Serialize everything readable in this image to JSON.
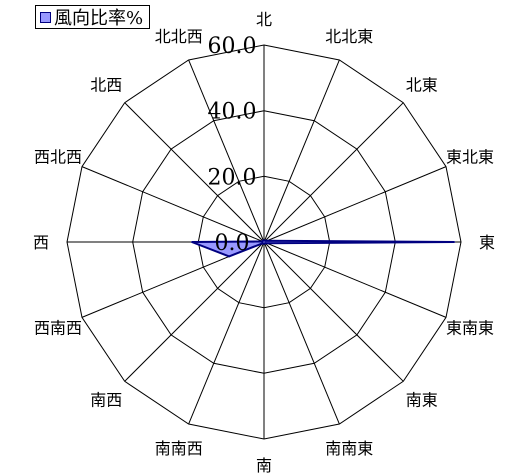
{
  "chart_data": {
    "type": "radar",
    "title": "",
    "legend": {
      "position": "top-left",
      "entries": [
        "風向比率%"
      ]
    },
    "axis": {
      "range": [
        0,
        60
      ],
      "ticks": [
        0,
        20,
        40,
        60
      ],
      "tick_labels": [
        "0.0",
        "20.0",
        "40.0",
        "60.0"
      ]
    },
    "categories": [
      "北",
      "北北東",
      "北東",
      "東北東",
      "東",
      "東南東",
      "南東",
      "南南東",
      "南",
      "南南西",
      "南西",
      "西南西",
      "西",
      "西北西",
      "北西",
      "北北西"
    ],
    "series": [
      {
        "name": "風向比率%",
        "values": [
          0.5,
          0.5,
          0.5,
          1.0,
          58.0,
          1.0,
          0.5,
          0.5,
          0.5,
          0.5,
          0.5,
          11.5,
          22.0,
          0.5,
          0.5,
          0.5
        ]
      }
    ],
    "colors": {
      "fill": "#9999ff",
      "stroke": "#000080",
      "grid": "#000000"
    }
  }
}
